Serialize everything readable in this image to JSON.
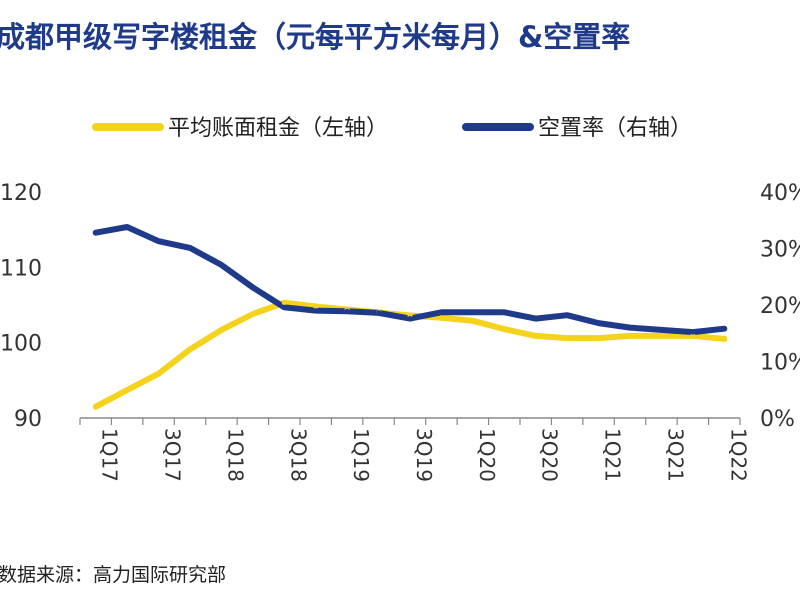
{
  "title": "成都甲级写字楼租金（元每平方米每月）&空置率",
  "source": "数据来源：高力国际研究部",
  "colors": {
    "rent": "#f5d21c",
    "vacancy": "#1f3a8a",
    "axis": "#888888"
  },
  "chart_data": {
    "type": "line",
    "title": "成都甲级写字楼租金（元每平方米每月）&空置率",
    "legend_position": "top",
    "grid": false,
    "x": [
      "1Q17",
      "2Q17",
      "3Q17",
      "4Q17",
      "1Q18",
      "2Q18",
      "3Q18",
      "4Q18",
      "1Q19",
      "2Q19",
      "3Q19",
      "4Q19",
      "1Q20",
      "2Q20",
      "3Q20",
      "4Q20",
      "1Q21",
      "2Q21",
      "3Q21",
      "4Q21",
      "1Q22"
    ],
    "x_tick_labels": [
      "1Q17",
      "3Q17",
      "1Q18",
      "3Q18",
      "1Q19",
      "3Q19",
      "1Q20",
      "3Q20",
      "1Q21",
      "3Q21",
      "1Q22"
    ],
    "y_left": {
      "ticks": [
        "90",
        "100",
        "110",
        "120"
      ],
      "lim": [
        90,
        120
      ]
    },
    "y_right": {
      "ticks": [
        "0%",
        "10%",
        "20%",
        "30%",
        "40%"
      ],
      "lim": [
        0,
        40
      ]
    },
    "series": [
      {
        "name": "平均账面租金（左轴）",
        "axis": "left",
        "color": "#f5d21c",
        "values": [
          91.5,
          93.7,
          95.9,
          99.1,
          101.7,
          103.8,
          105.3,
          104.8,
          104.4,
          104.0,
          103.6,
          103.3,
          102.9,
          101.8,
          100.9,
          100.6,
          100.6,
          100.9,
          100.9,
          100.9,
          100.5
        ]
      },
      {
        "name": "空置率（右轴）",
        "axis": "right",
        "color": "#1f3a8a",
        "values": [
          32.8,
          33.8,
          31.3,
          30.1,
          27.1,
          23.1,
          19.6,
          19.0,
          18.9,
          18.6,
          17.6,
          18.7,
          18.7,
          18.7,
          17.6,
          18.2,
          16.8,
          16.0,
          15.6,
          15.2,
          15.8
        ]
      }
    ]
  }
}
